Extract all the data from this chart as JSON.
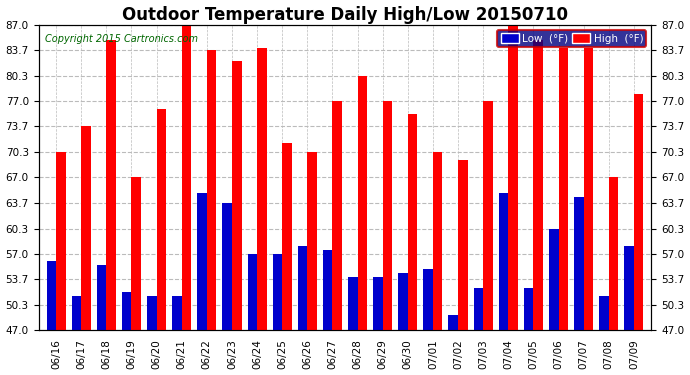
{
  "title": "Outdoor Temperature Daily High/Low 20150710",
  "copyright": "Copyright 2015 Cartronics.com",
  "dates": [
    "06/16",
    "06/17",
    "06/18",
    "06/19",
    "06/20",
    "06/21",
    "06/22",
    "06/23",
    "06/24",
    "06/25",
    "06/26",
    "06/27",
    "06/28",
    "06/29",
    "06/30",
    "07/01",
    "07/02",
    "07/03",
    "07/04",
    "07/05",
    "07/06",
    "07/07",
    "07/08",
    "07/09"
  ],
  "highs": [
    70.3,
    73.7,
    85.0,
    67.0,
    76.0,
    87.0,
    83.7,
    82.3,
    84.0,
    71.5,
    70.3,
    77.0,
    80.3,
    77.0,
    75.3,
    70.3,
    69.3,
    77.0,
    87.0,
    85.0,
    84.0,
    84.0,
    67.0,
    78.0
  ],
  "lows": [
    56.0,
    51.5,
    55.5,
    52.0,
    51.5,
    51.5,
    65.0,
    63.7,
    57.0,
    57.0,
    58.0,
    57.5,
    54.0,
    54.0,
    54.5,
    55.0,
    49.0,
    52.5,
    65.0,
    52.5,
    60.3,
    64.5,
    51.5,
    58.0
  ],
  "high_color": "#ff0000",
  "low_color": "#0000cc",
  "bg_color": "#ffffff",
  "grid_color": "#bbbbbb",
  "ylim_min": 47.0,
  "ylim_max": 87.0,
  "yticks": [
    47.0,
    50.3,
    53.7,
    57.0,
    60.3,
    63.7,
    67.0,
    70.3,
    73.7,
    77.0,
    80.3,
    83.7,
    87.0
  ],
  "title_fontsize": 12,
  "copyright_fontsize": 7,
  "tick_fontsize": 7.5,
  "bar_width": 0.38,
  "bar_base": 47.0
}
